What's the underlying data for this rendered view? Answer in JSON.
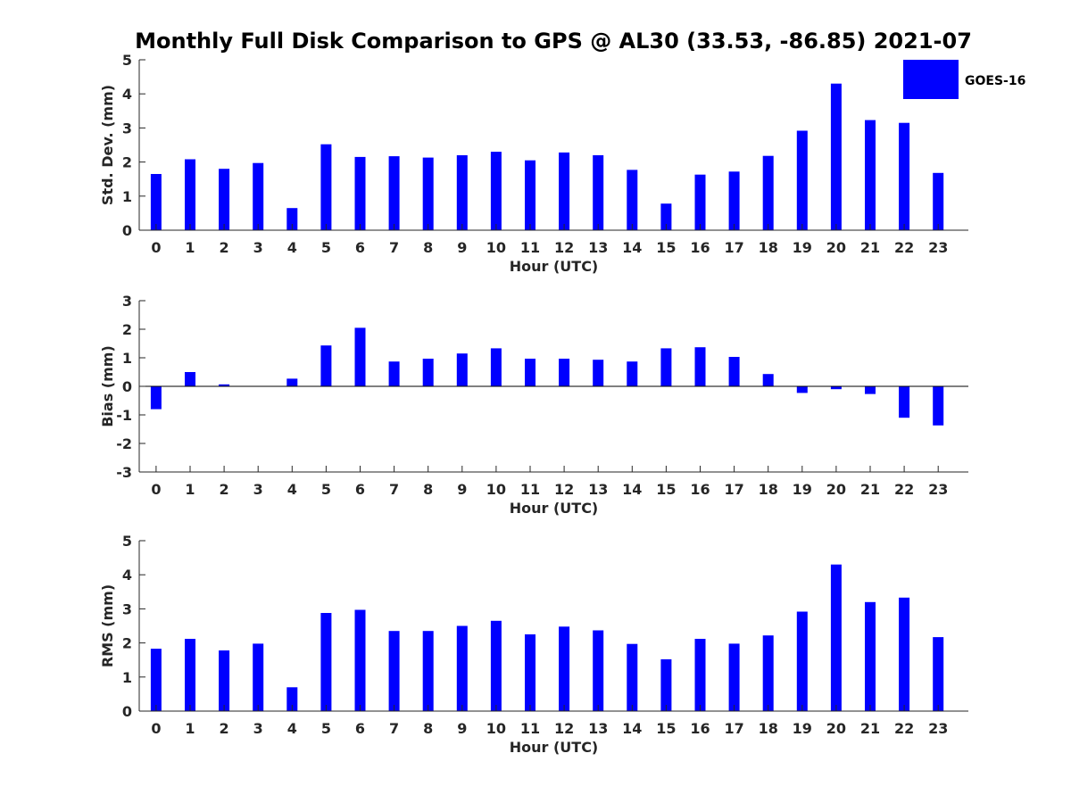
{
  "title": "Monthly Full Disk Comparison to GPS @ AL30 (33.53, -86.85) 2021-07",
  "legend": {
    "label": "GOES-16",
    "color": "#0000ff",
    "placement": "top-right"
  },
  "chart_data": [
    {
      "type": "bar",
      "categories": [
        "0",
        "1",
        "2",
        "3",
        "4",
        "5",
        "6",
        "7",
        "8",
        "9",
        "10",
        "11",
        "12",
        "13",
        "14",
        "15",
        "16",
        "17",
        "18",
        "19",
        "20",
        "21",
        "22",
        "23"
      ],
      "series": [
        {
          "name": "GOES-16",
          "color": "#0000ff",
          "values": [
            1.65,
            2.08,
            1.8,
            1.97,
            0.65,
            2.52,
            2.15,
            2.17,
            2.13,
            2.2,
            2.3,
            2.05,
            2.28,
            2.2,
            1.77,
            0.78,
            1.63,
            1.72,
            2.18,
            2.92,
            4.3,
            3.23,
            3.15,
            1.68
          ]
        }
      ],
      "title": "",
      "xlabel": "Hour (UTC)",
      "ylabel": "Std. Dev. (mm)",
      "ylim": [
        0,
        5
      ],
      "yticks": [
        "0",
        "1",
        "2",
        "3",
        "4",
        "5"
      ],
      "grid": false
    },
    {
      "type": "bar",
      "categories": [
        "0",
        "1",
        "2",
        "3",
        "4",
        "5",
        "6",
        "7",
        "8",
        "9",
        "10",
        "11",
        "12",
        "13",
        "14",
        "15",
        "16",
        "17",
        "18",
        "19",
        "20",
        "21",
        "22",
        "23"
      ],
      "series": [
        {
          "name": "GOES-16",
          "color": "#0000ff",
          "values": [
            -0.8,
            0.5,
            0.07,
            0.0,
            0.27,
            1.43,
            2.05,
            0.87,
            0.97,
            1.15,
            1.33,
            0.97,
            0.97,
            0.93,
            0.87,
            1.33,
            1.37,
            1.03,
            0.43,
            -0.23,
            -0.1,
            -0.27,
            -1.1,
            -1.37
          ]
        }
      ],
      "title": "",
      "xlabel": "Hour (UTC)",
      "ylabel": "Bias (mm)",
      "ylim": [
        -3,
        3
      ],
      "yticks": [
        "-3",
        "-2",
        "-1",
        "0",
        "1",
        "2",
        "3"
      ],
      "grid": false
    },
    {
      "type": "bar",
      "categories": [
        "0",
        "1",
        "2",
        "3",
        "4",
        "5",
        "6",
        "7",
        "8",
        "9",
        "10",
        "11",
        "12",
        "13",
        "14",
        "15",
        "16",
        "17",
        "18",
        "19",
        "20",
        "21",
        "22",
        "23"
      ],
      "series": [
        {
          "name": "GOES-16",
          "color": "#0000ff",
          "values": [
            1.83,
            2.12,
            1.78,
            1.98,
            0.7,
            2.88,
            2.97,
            2.35,
            2.35,
            2.5,
            2.65,
            2.25,
            2.48,
            2.37,
            1.97,
            1.52,
            2.12,
            1.98,
            2.22,
            2.92,
            4.3,
            3.2,
            3.33,
            2.17
          ]
        }
      ],
      "title": "",
      "xlabel": "Hour (UTC)",
      "ylabel": "RMS (mm)",
      "ylim": [
        0,
        5
      ],
      "yticks": [
        "0",
        "1",
        "2",
        "3",
        "4",
        "5"
      ],
      "grid": false
    }
  ]
}
